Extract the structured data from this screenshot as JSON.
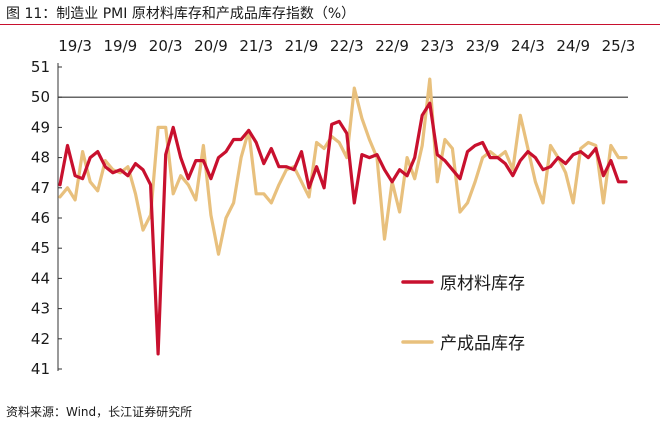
{
  "figure": {
    "title": "图 11：制造业 PMI 原材料库存和产成品库存指数（%）",
    "source": "资料来源：Wind，长江证券研究所"
  },
  "colors": {
    "series1": "#c8102e",
    "series2": "#e8c07d",
    "axis": "#333333",
    "rule": "#c8102e"
  },
  "chart_data": {
    "type": "line",
    "title": "图 11：制造业 PMI 原材料库存和产成品库存指数（%）",
    "xlabel": "",
    "ylabel": "",
    "x": [
      "2019-01",
      "2019-02",
      "2019-03",
      "2019-04",
      "2019-05",
      "2019-06",
      "2019-07",
      "2019-08",
      "2019-09",
      "2019-10",
      "2019-11",
      "2019-12",
      "2020-01",
      "2020-02",
      "2020-03",
      "2020-04",
      "2020-05",
      "2020-06",
      "2020-07",
      "2020-08",
      "2020-09",
      "2020-10",
      "2020-11",
      "2020-12",
      "2021-01",
      "2021-02",
      "2021-03",
      "2021-04",
      "2021-05",
      "2021-06",
      "2021-07",
      "2021-08",
      "2021-09",
      "2021-10",
      "2021-11",
      "2021-12",
      "2022-01",
      "2022-02",
      "2022-03",
      "2022-04",
      "2022-05",
      "2022-06",
      "2022-07",
      "2022-08",
      "2022-09",
      "2022-10",
      "2022-11",
      "2022-12",
      "2023-01",
      "2023-02",
      "2023-03",
      "2023-04",
      "2023-05",
      "2023-06",
      "2023-07",
      "2023-08",
      "2023-09",
      "2023-10",
      "2023-11",
      "2023-12",
      "2024-01",
      "2024-02",
      "2024-03",
      "2024-04",
      "2024-05",
      "2024-06",
      "2024-07",
      "2024-08",
      "2024-09",
      "2024-10",
      "2024-11",
      "2024-12",
      "2025-01",
      "2025-02",
      "2025-03",
      "2025-04"
    ],
    "x_tick_labels": [
      "19/3",
      "19/9",
      "20/3",
      "20/9",
      "21/3",
      "21/9",
      "22/3",
      "22/9",
      "23/3",
      "23/9",
      "24/3",
      "24/9",
      "25/3"
    ],
    "x_tick_dates": [
      "2019-03",
      "2019-09",
      "2020-03",
      "2020-09",
      "2021-03",
      "2021-09",
      "2022-03",
      "2022-09",
      "2023-03",
      "2023-09",
      "2024-03",
      "2024-09",
      "2025-03"
    ],
    "ylim": [
      41,
      51
    ],
    "yticks": [
      41,
      42,
      43,
      44,
      45,
      46,
      47,
      48,
      49,
      50,
      51
    ],
    "reference_line": 50,
    "grid": false,
    "legend_position": "bottom-right",
    "series": [
      {
        "name": "原材料库存",
        "values": [
          47.1,
          48.4,
          47.4,
          47.3,
          48.0,
          48.2,
          47.7,
          47.5,
          47.6,
          47.4,
          47.8,
          47.6,
          47.1,
          41.5,
          48.1,
          49.0,
          48.0,
          47.3,
          47.9,
          47.9,
          47.3,
          48.0,
          48.2,
          48.6,
          48.6,
          48.9,
          48.5,
          47.8,
          48.3,
          47.7,
          47.7,
          47.6,
          48.2,
          47.0,
          47.7,
          47.0,
          49.1,
          49.2,
          48.8,
          46.5,
          48.1,
          48.0,
          48.1,
          47.6,
          47.2,
          47.6,
          47.4,
          48.0,
          49.4,
          49.8,
          48.1,
          47.9,
          47.6,
          47.3,
          48.2,
          48.4,
          48.5,
          48.0,
          48.0,
          47.8,
          47.4,
          47.9,
          48.2,
          48.0,
          47.6,
          47.7,
          48.0,
          47.8,
          48.1,
          48.2,
          48.0,
          48.3,
          47.4,
          47.9,
          47.2,
          47.2
        ]
      },
      {
        "name": "产成品库存",
        "values": [
          46.7,
          47.0,
          46.6,
          48.2,
          47.2,
          46.9,
          47.9,
          47.6,
          47.5,
          47.7,
          46.8,
          45.6,
          46.1,
          49.0,
          49.0,
          46.8,
          47.4,
          47.1,
          46.6,
          48.4,
          46.1,
          44.8,
          46.0,
          46.5,
          48.0,
          48.9,
          46.8,
          46.8,
          46.5,
          47.1,
          47.6,
          47.7,
          47.2,
          46.7,
          48.5,
          48.3,
          48.7,
          48.5,
          48.0,
          50.3,
          49.3,
          48.6,
          48.0,
          45.3,
          47.2,
          46.2,
          48.0,
          47.3,
          48.4,
          50.6,
          47.2,
          48.6,
          48.3,
          46.2,
          46.5,
          47.2,
          48.0,
          48.2,
          48.0,
          48.2,
          47.6,
          49.4,
          48.3,
          47.2,
          46.5,
          48.4,
          48.0,
          47.5,
          46.5,
          48.3,
          48.5,
          48.4,
          46.5,
          48.4,
          48.0,
          48.0
        ]
      }
    ]
  }
}
